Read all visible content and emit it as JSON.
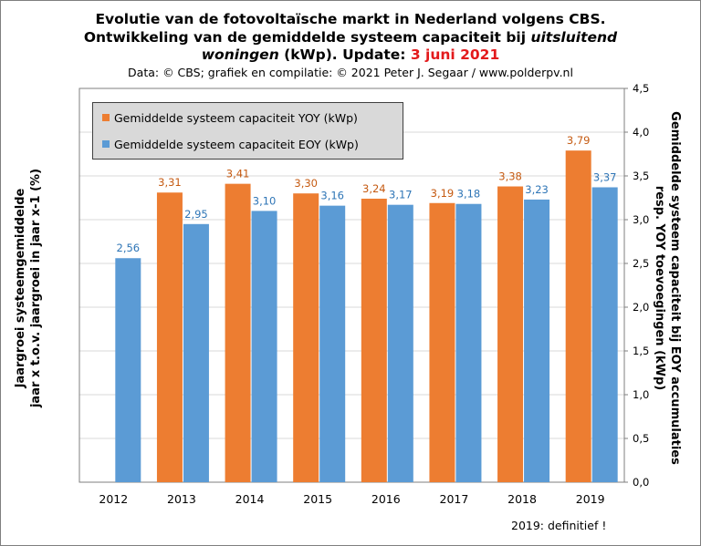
{
  "header": {
    "title_line1": "Evolutie  van de fotovoltaïsche  markt in Nederland volgens CBS.",
    "title_line2_a": "Ontwikkeling  van de gemiddelde  systeem capaciteit  bij ",
    "title_line2_b": "uitsluitend",
    "title_line3_a": "woningen",
    "title_line3_b": " (kWp). Update: ",
    "title_line3_c": "3 juni 2021",
    "source": "Data: © CBS; grafiek en compilatie: © 2021 Peter J. Segaar / www.polderpv.nl"
  },
  "footnote": "2019:  definitief !",
  "colors": {
    "yoy": "#ed7d31",
    "eoy": "#5b9bd5",
    "yoy_label": "#c55a11",
    "eoy_label": "#2e75b6",
    "plot_bg": "#ffffff",
    "grid": "#d9d9d9"
  },
  "chart_data": {
    "type": "bar",
    "categories": [
      "2012",
      "2013",
      "2014",
      "2015",
      "2016",
      "2017",
      "2018",
      "2019"
    ],
    "series": [
      {
        "name": "Gemiddelde systeem capaciteit YOY (kWp)",
        "values": [
          null,
          3.31,
          3.41,
          3.3,
          3.24,
          3.19,
          3.38,
          3.79
        ],
        "labels": [
          "",
          "3,31",
          "3,41",
          "3,30",
          "3,24",
          "3,19",
          "3,38",
          "3,79"
        ]
      },
      {
        "name": "Gemiddelde systeem capaciteit EOY (kWp)",
        "values": [
          2.56,
          2.95,
          3.1,
          3.16,
          3.17,
          3.18,
          3.23,
          3.37
        ],
        "labels": [
          "2,56",
          "2,95",
          "3,10",
          "3,16",
          "3,17",
          "3,18",
          "3,23",
          "3,37"
        ]
      }
    ],
    "ylabel_left_line1": "Jaargroei systeemgemiddelde",
    "ylabel_left_line2": "jaar x t.o.v. jaargroei in jaar x-1 (%)",
    "ylabel_right_line1": "Gemiddelde systeem capaciteit bij EOY accumulaties",
    "ylabel_right_line2": "resp. YOY toevoegingen (kWp)",
    "ylim": [
      0,
      4.5
    ],
    "yticks": [
      0,
      0.5,
      1.0,
      1.5,
      2.0,
      2.5,
      3.0,
      3.5,
      4.0,
      4.5
    ],
    "ytick_labels": [
      "0,0",
      "0,5",
      "1,0",
      "1,5",
      "2,0",
      "2,5",
      "3,0",
      "3,5",
      "4,0",
      "4,5"
    ],
    "grid": true,
    "legend_position": "top-left"
  }
}
